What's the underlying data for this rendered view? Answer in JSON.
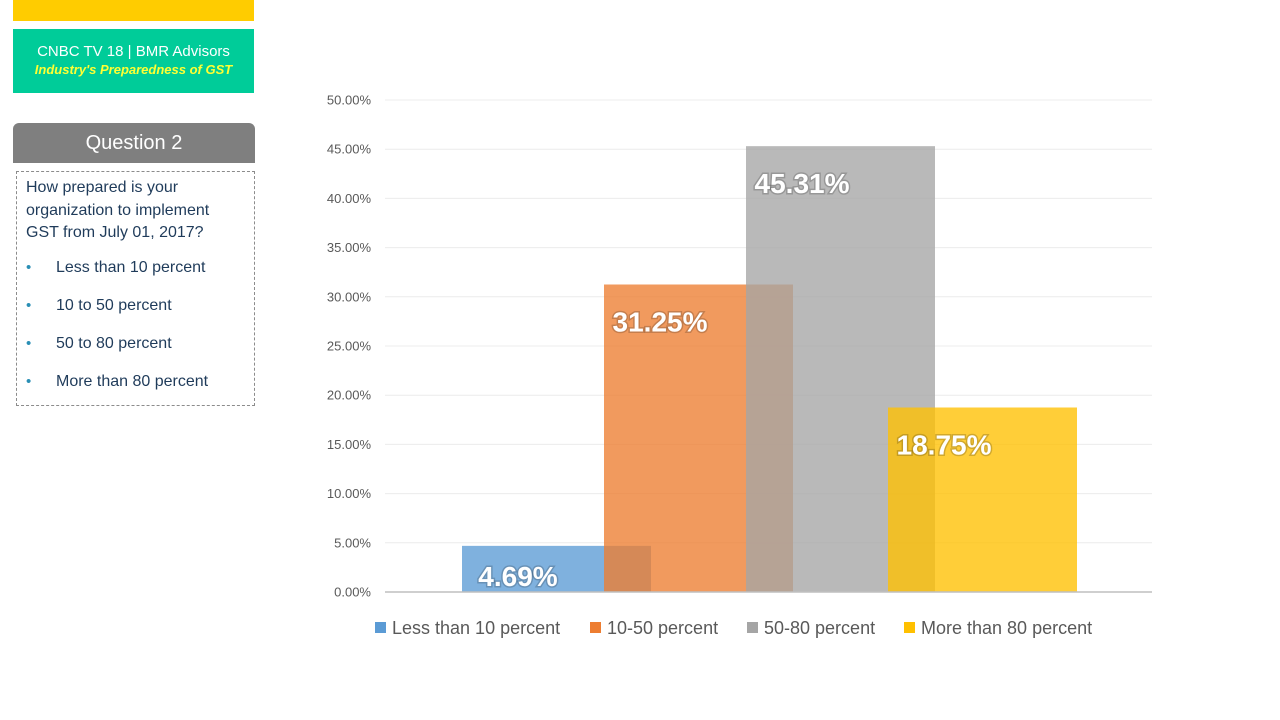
{
  "brand": {
    "line1": "CNBC TV 18 | BMR Advisors",
    "line2": "Industry's Preparedness of GST"
  },
  "question": {
    "header": "Question 2",
    "text": "How prepared is your organization to implement GST from July 01, 2017?",
    "options": [
      "Less than 10 percent",
      "10 to 50 percent",
      "50 to 80 percent",
      "More than 80 percent"
    ]
  },
  "colors": {
    "top_bar": "#ffcc00",
    "brand_bg": "#00cc99",
    "question_header_bg": "#7f7f7f"
  },
  "chart_data": {
    "type": "bar",
    "title": "",
    "xlabel": "",
    "ylabel": "",
    "ylim": [
      0,
      50
    ],
    "yticks": [
      "0.00%",
      "5.00%",
      "10.00%",
      "15.00%",
      "20.00%",
      "25.00%",
      "30.00%",
      "35.00%",
      "40.00%",
      "45.00%",
      "50.00%"
    ],
    "grid": true,
    "legend_position": "bottom",
    "series": [
      {
        "name": "Less than 10 percent",
        "value": 4.69,
        "label": "4.69%",
        "color": "#5b9bd5"
      },
      {
        "name": "10-50 percent",
        "value": 31.25,
        "label": "31.25%",
        "color": "#ed7d31"
      },
      {
        "name": "50-80 percent",
        "value": 45.31,
        "label": "45.31%",
        "color": "#a5a5a5"
      },
      {
        "name": "More than 80 percent",
        "value": 18.75,
        "label": "18.75%",
        "color": "#ffc000"
      }
    ]
  }
}
